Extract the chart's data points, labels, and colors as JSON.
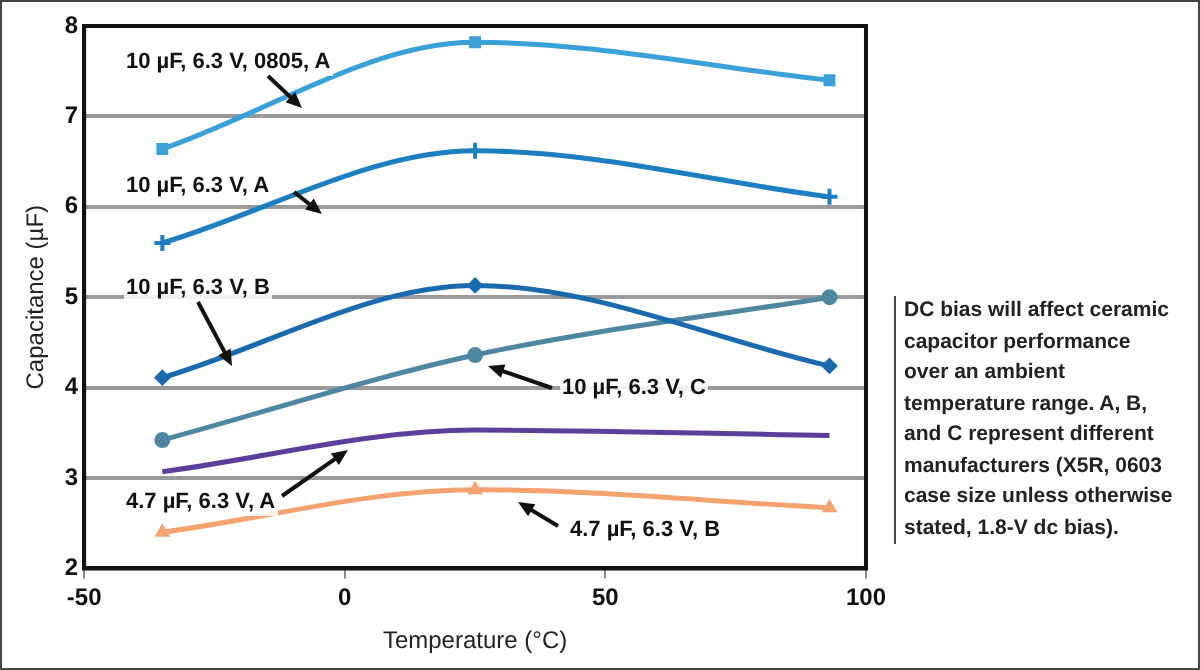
{
  "chart_data": {
    "type": "line",
    "xlabel": "Temperature (°C)",
    "ylabel": "Capacitance (µF)",
    "xlim": [
      -50,
      100
    ],
    "xticks": [
      -50,
      0,
      50,
      100
    ],
    "ylim": [
      2,
      8
    ],
    "yticks": [
      2,
      3,
      4,
      5,
      6,
      7,
      8
    ],
    "grid": "y",
    "legend": false,
    "x": [
      -35,
      25,
      93
    ],
    "series": [
      {
        "name": "10 µF, 6.3 V, 0805, A",
        "color": "#3aa0d8",
        "marker": "square",
        "values": [
          6.64,
          7.82,
          7.4
        ]
      },
      {
        "name": "10 µF, 6.3 V, A",
        "color": "#1e7fc0",
        "marker": "cross",
        "values": [
          5.6,
          6.62,
          6.11
        ]
      },
      {
        "name": "10 µF, 6.3 V, B",
        "color": "#1a6aad",
        "marker": "diamond",
        "values": [
          4.11,
          5.13,
          4.24
        ]
      },
      {
        "name": "10 µF, 6.3 V, C",
        "color": "#4f86a0",
        "marker": "circle",
        "values": [
          3.42,
          4.36,
          5.0
        ]
      },
      {
        "name": "4.7 µF, 6.3 V, A",
        "color": "#5b3f9a",
        "marker": "none",
        "values": [
          3.07,
          3.53,
          3.47
        ]
      },
      {
        "name": "4.7 µF, 6.3 V, B",
        "color": "#f4a270",
        "marker": "triangle",
        "values": [
          2.4,
          2.87,
          2.67
        ]
      }
    ],
    "annotations": [
      "DC bias will affect ceramic capacitor performance over an ambient temperature range. A, B, and C represent different manufacturers (X5R, 0603 case size unless otherwise stated, 1.8-V dc bias)."
    ]
  }
}
